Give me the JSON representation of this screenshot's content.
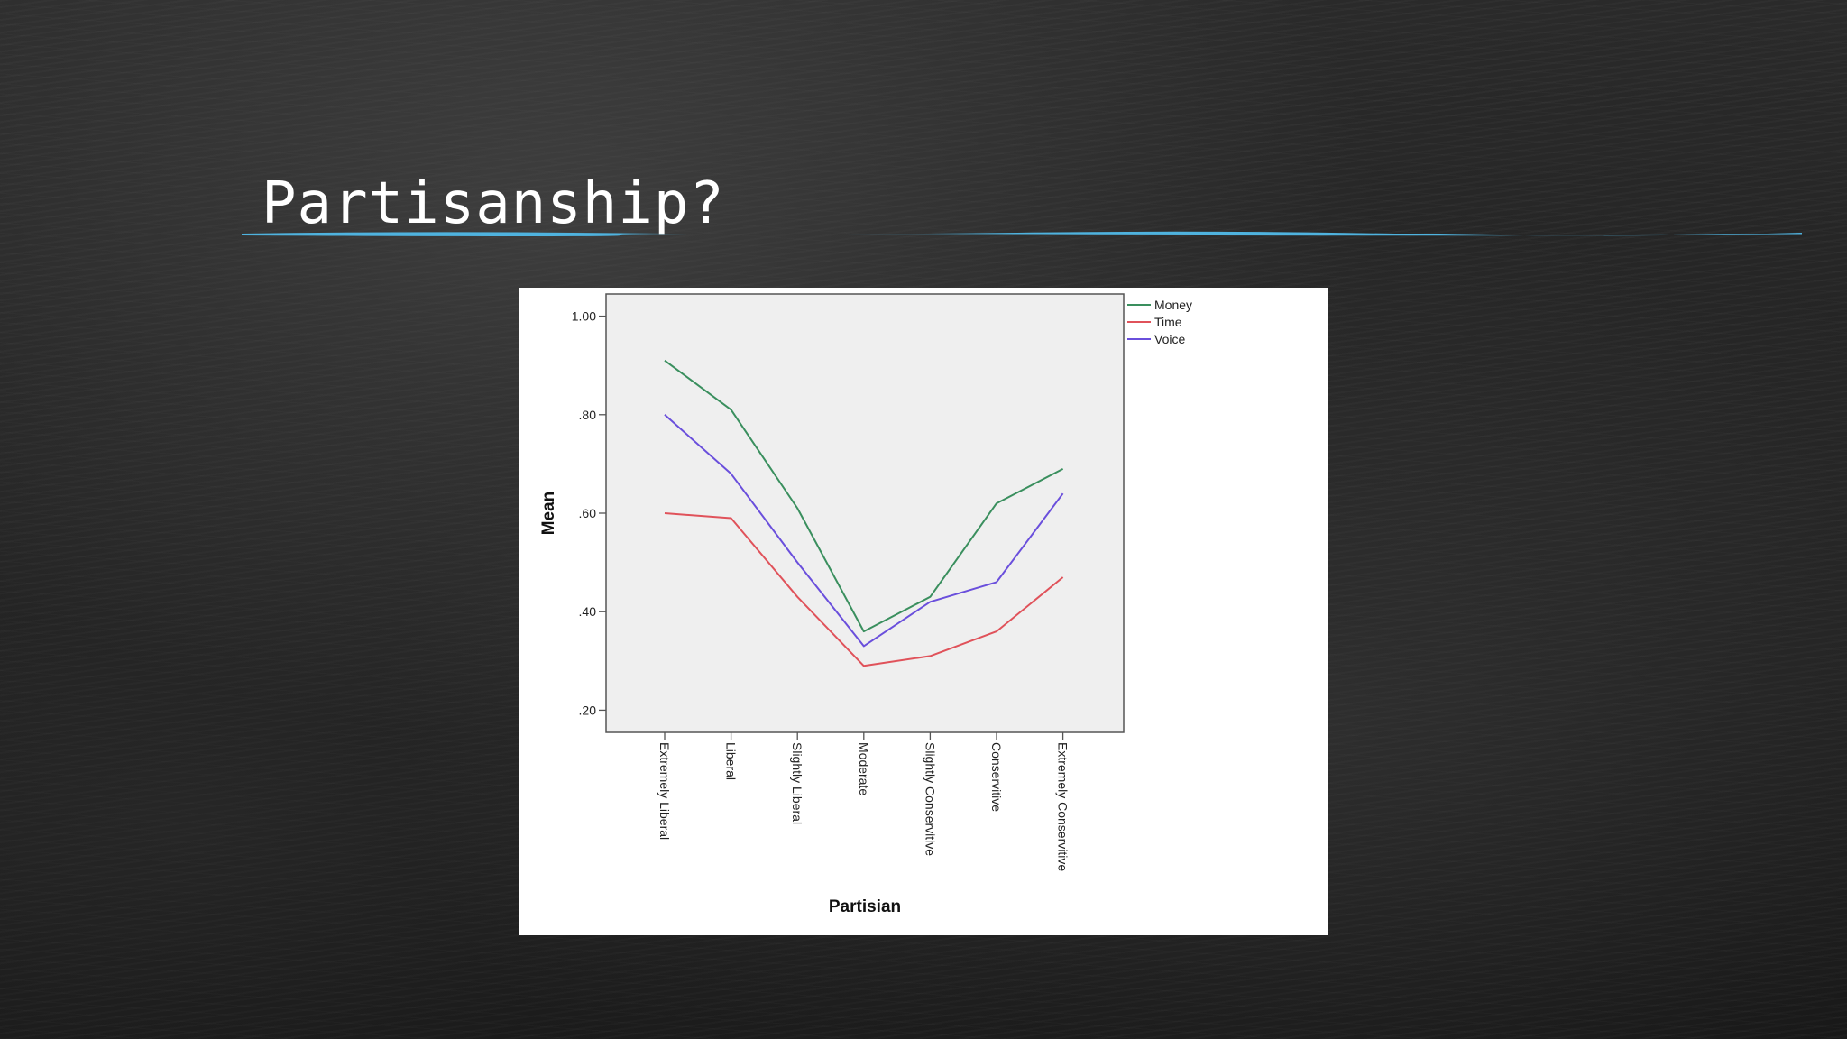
{
  "slide": {
    "title": "Partisanship?",
    "accent_color": "#4fb3df"
  },
  "chart_data": {
    "type": "line",
    "x": [
      "Extremely Liberal",
      "Liberal",
      "Slightly Liberal",
      "Moderate",
      "Slightly Conservitive",
      "Conservitive",
      "Extremely Conservitive"
    ],
    "series": [
      {
        "name": "Money",
        "color": "#3a8f5e",
        "values": [
          0.91,
          0.81,
          0.61,
          0.36,
          0.43,
          0.62,
          0.69
        ]
      },
      {
        "name": "Time",
        "color": "#e0525a",
        "values": [
          0.6,
          0.59,
          0.43,
          0.29,
          0.31,
          0.36,
          0.47
        ]
      },
      {
        "name": "Voice",
        "color": "#6a4fdc",
        "values": [
          0.8,
          0.68,
          0.5,
          0.33,
          0.42,
          0.46,
          0.64
        ]
      }
    ],
    "xlabel": "Partisian",
    "ylabel": "Mean",
    "ylim": [
      0.155,
      1.045
    ],
    "yticks": [
      {
        "value": 0.2,
        "label": ".20"
      },
      {
        "value": 0.4,
        "label": ".40"
      },
      {
        "value": 0.6,
        "label": ".60"
      },
      {
        "value": 0.8,
        "label": ".80"
      },
      {
        "value": 1.0,
        "label": "1.00"
      }
    ],
    "legend_position": "right-top",
    "plot_background": "#efefef",
    "grid": false
  }
}
